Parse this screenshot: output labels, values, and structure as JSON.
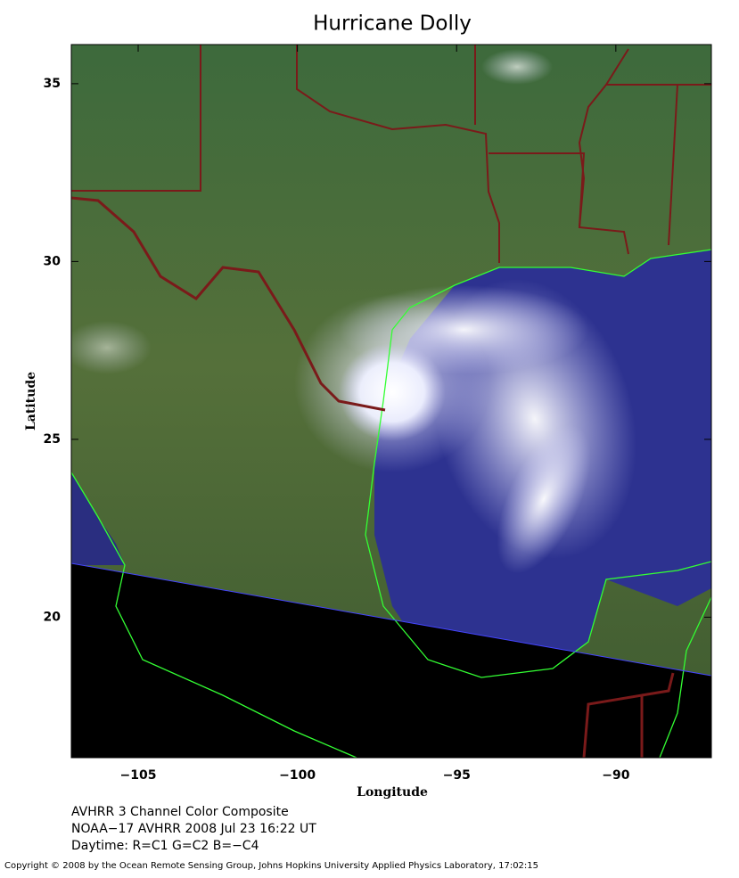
{
  "map": {
    "title": "Hurricane Dolly",
    "xlabel": "Longitude",
    "ylabel": "Latitude",
    "xlim": [
      -107.1,
      -87
    ],
    "ylim": [
      16.05,
      36.1
    ],
    "xticks": [
      {
        "value": -105,
        "label": "−105"
      },
      {
        "value": -100,
        "label": "−100"
      },
      {
        "value": -95,
        "label": "−95"
      },
      {
        "value": -90,
        "label": "−90"
      }
    ],
    "yticks": [
      20,
      25,
      30,
      35
    ],
    "caption": [
      "AVHRR 3 Channel Color Composite",
      "NOAA−17 AVHRR 2008 Jul 23 16:22 UT",
      "Daytime: R=C1 G=C2 B=−C4"
    ],
    "copyright": "Copyright © 2008 by the Ocean Remote Sensing Group, Johns Hopkins University Applied Physics Laboratory, 17:02:15"
  }
}
